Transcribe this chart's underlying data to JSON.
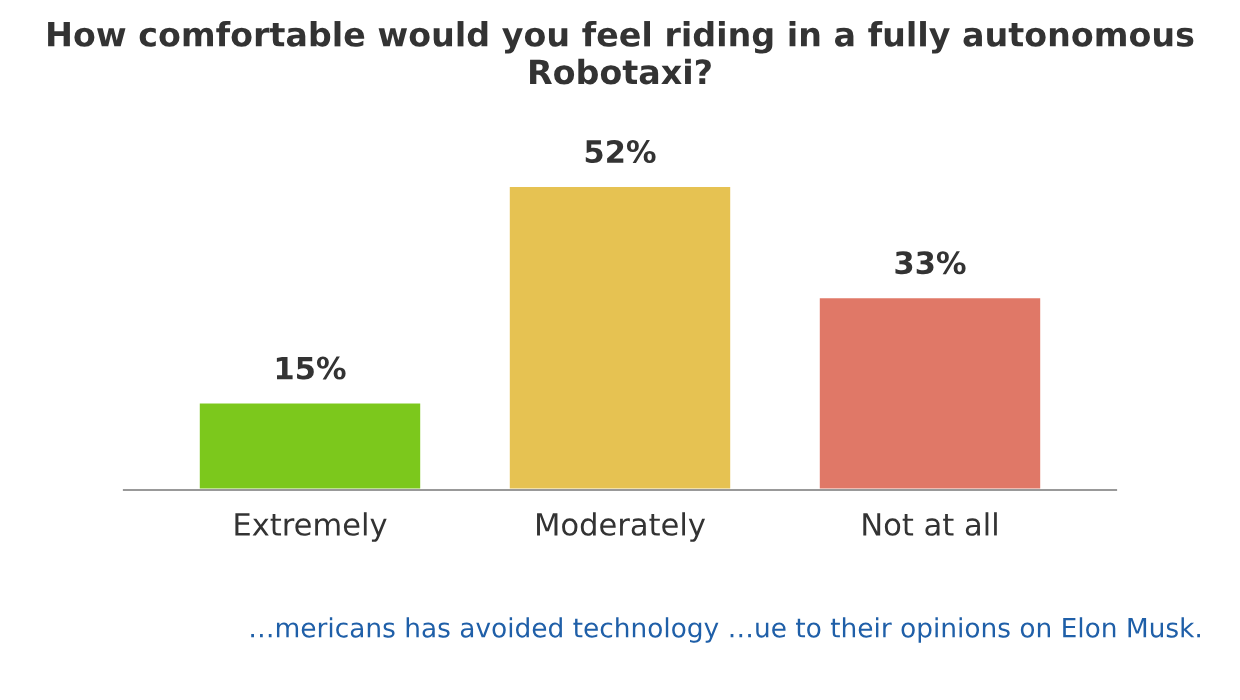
{
  "chart_data": {
    "type": "bar",
    "title": "How comfortable would you feel riding in a fully autonomous Robotaxi?",
    "categories": [
      "Extremely",
      "Moderately",
      "Not at all"
    ],
    "values": [
      15,
      52,
      33
    ],
    "colors": [
      "#7cc81c",
      "#e6c252",
      "#e07867"
    ],
    "data_labels": true,
    "value_labels": [
      "15%",
      "52%",
      "33%"
    ],
    "annotations": [
      "…mericans has avoided technology …ue to their opinions on Elon Musk."
    ]
  }
}
